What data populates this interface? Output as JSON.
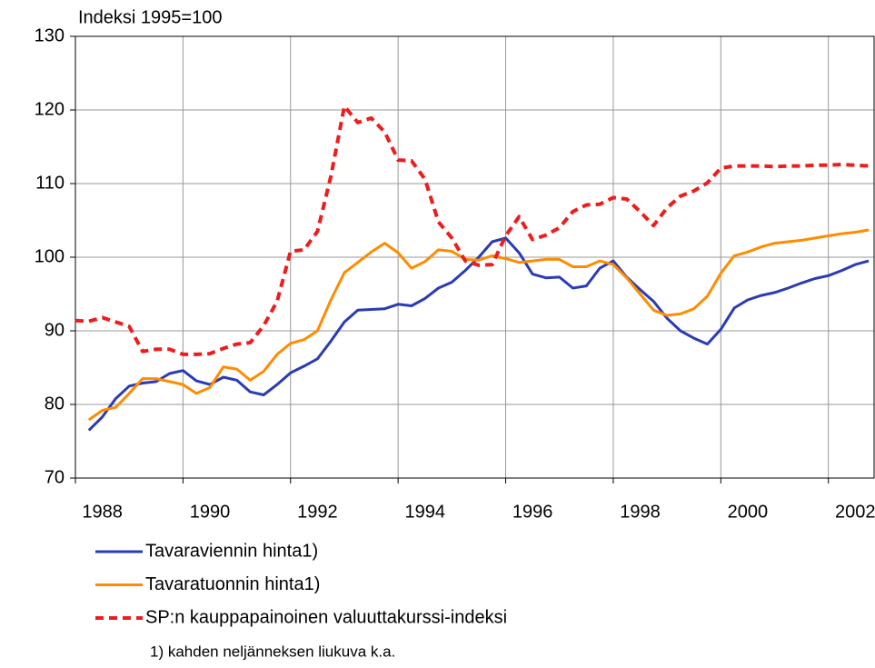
{
  "chart_data": {
    "type": "line",
    "ylabel": "Indeksi 1995=100",
    "note": "1) kahden neljänneksen liukuva k.a.",
    "x": [
      1988,
      1988.25,
      1988.5,
      1988.75,
      1989,
      1989.25,
      1989.5,
      1989.75,
      1990,
      1990.25,
      1990.5,
      1990.75,
      1991,
      1991.25,
      1991.5,
      1991.75,
      1992,
      1992.25,
      1992.5,
      1992.75,
      1993,
      1993.25,
      1993.5,
      1993.75,
      1994,
      1994.25,
      1994.5,
      1994.75,
      1995,
      1995.25,
      1995.5,
      1995.75,
      1996,
      1996.25,
      1996.5,
      1996.75,
      1997,
      1997.25,
      1997.5,
      1997.75,
      1998,
      1998.25,
      1998.5,
      1998.75,
      1999,
      1999.25,
      1999.5,
      1999.75,
      2000,
      2000.25,
      2000.5,
      2000.75,
      2001,
      2001.25,
      2001.5,
      2001.75,
      2002,
      2002.25,
      2002.5,
      2002.75
    ],
    "series": [
      {
        "name": "Tavaraviennin hinta1)",
        "color": "#2a3bb5",
        "dashed": false,
        "values": [
          null,
          76.5,
          78.3,
          80.8,
          82.5,
          82.9,
          83.1,
          84.2,
          84.6,
          83.2,
          82.7,
          83.7,
          83.3,
          81.7,
          81.3,
          82.7,
          84.3,
          85.2,
          86.2,
          88.6,
          91.2,
          92.8,
          92.9,
          93,
          93.6,
          93.4,
          94.4,
          95.8,
          96.6,
          98.2,
          100,
          102.1,
          102.6,
          100.6,
          97.7,
          97.2,
          97.3,
          95.8,
          96.1,
          98.5,
          99.5,
          97.3,
          95.6,
          94,
          91.7,
          90,
          89,
          88.2,
          90.2,
          93.1,
          94.2,
          94.8,
          95.2,
          95.8,
          96.5,
          97.1,
          97.5,
          98.2,
          99,
          99.5
        ]
      },
      {
        "name": "Tavaratuonnin hinta1)",
        "color": "#ff8c00",
        "dashed": false,
        "values": [
          null,
          77.9,
          79.2,
          79.6,
          81.5,
          83.5,
          83.5,
          83.1,
          82.7,
          81.5,
          82.3,
          85.1,
          84.8,
          83.3,
          84.5,
          86.8,
          88.3,
          88.8,
          90,
          94.2,
          97.9,
          99.3,
          100.7,
          101.9,
          100.6,
          98.5,
          99.4,
          101,
          100.8,
          99.7,
          99.6,
          100.2,
          99.8,
          99.3,
          99.5,
          99.7,
          99.7,
          98.7,
          98.7,
          99.5,
          99,
          97.2,
          95,
          92.8,
          92.1,
          92.3,
          93,
          94.7,
          97.8,
          100.2,
          100.7,
          101.4,
          101.9,
          102.1,
          102.3,
          102.6,
          102.9,
          103.2,
          103.4,
          103.7
        ]
      },
      {
        "name": "SP:n kauppapainoinen valuuttakurssi-indeksi",
        "color": "#ee1c1c",
        "dashed": true,
        "values": [
          91.4,
          91.3,
          91.8,
          91.2,
          90.6,
          87.2,
          87.5,
          87.5,
          86.8,
          86.8,
          86.9,
          87.6,
          88.2,
          88.4,
          90.7,
          94,
          100.8,
          101,
          103.5,
          111,
          120.5,
          118.3,
          118.9,
          117,
          113.2,
          113.1,
          110.6,
          104.8,
          102.6,
          99.5,
          98.9,
          99,
          102.9,
          105.5,
          102.4,
          103,
          104,
          106.2,
          107.1,
          107.2,
          108.1,
          107.9,
          106.2,
          104.3,
          106.7,
          108.3,
          109,
          110.1,
          112.1,
          112.4,
          112.4,
          112.4,
          112.3,
          112.4,
          112.4,
          112.5,
          112.5,
          112.6,
          112.5,
          112.4
        ]
      }
    ],
    "xlim": [
      1988,
      2002.85
    ],
    "xticks": [
      1988,
      1990,
      1992,
      1994,
      1996,
      1998,
      2000,
      2002
    ],
    "ylim": [
      70,
      130
    ],
    "yticks": [
      70,
      80,
      90,
      100,
      110,
      120,
      130
    ],
    "grid": true
  }
}
